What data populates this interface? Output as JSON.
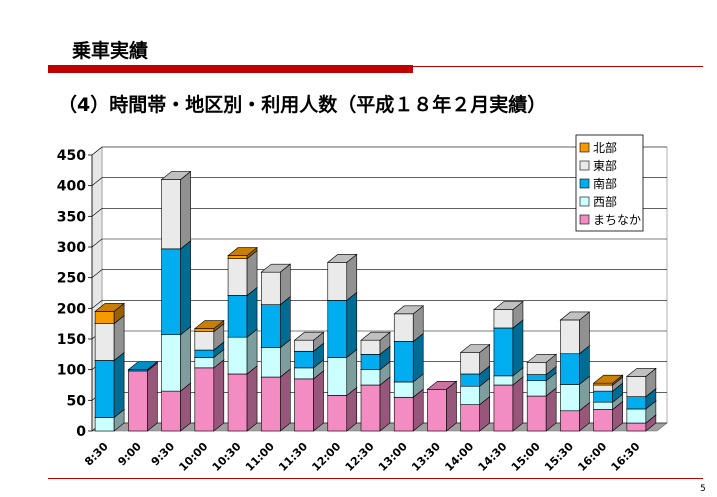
{
  "header": {
    "title": "乗車実績"
  },
  "subtitle": "（4）時間帯・地区別・利用人数（平成１８年２月実績）",
  "page_number": "5",
  "chart_data": {
    "type": "bar",
    "stacked": true,
    "three_d": true,
    "title": "（4）時間帯・地区別・利用人数（平成１８年２月実績）",
    "xlabel": "",
    "ylabel": "",
    "ylim": [
      0,
      450
    ],
    "yticks": [
      0,
      50,
      100,
      150,
      200,
      250,
      300,
      350,
      400,
      450
    ],
    "grid": true,
    "legend_position": "top-right",
    "categories": [
      "8:30",
      "9:00",
      "9:30",
      "10:00",
      "10:30",
      "11:00",
      "11:30",
      "12:00",
      "12:30",
      "13:00",
      "13:30",
      "14:00",
      "14:30",
      "15:00",
      "15:30",
      "16:00",
      "16:30"
    ],
    "series": [
      {
        "name": "まちなか",
        "color": "#f48cc4",
        "values": [
          0,
          98,
          65,
          103,
          93,
          88,
          85,
          58,
          75,
          55,
          68,
          43,
          75,
          57,
          33,
          35,
          13
        ]
      },
      {
        "name": "西部",
        "color": "#ccffff",
        "values": [
          22,
          0,
          92,
          17,
          60,
          48,
          18,
          62,
          25,
          25,
          0,
          30,
          15,
          25,
          43,
          12,
          23
        ]
      },
      {
        "name": "南部",
        "color": "#00aeef",
        "values": [
          93,
          2,
          140,
          12,
          68,
          70,
          27,
          93,
          25,
          66,
          0,
          20,
          78,
          10,
          50,
          18,
          20
        ]
      },
      {
        "name": "東部",
        "color": "#eaeaea",
        "values": [
          60,
          0,
          113,
          30,
          60,
          53,
          18,
          62,
          23,
          45,
          0,
          35,
          30,
          20,
          55,
          10,
          33
        ]
      },
      {
        "name": "北部",
        "color": "#f59b00",
        "values": [
          20,
          0,
          0,
          5,
          5,
          0,
          0,
          0,
          0,
          0,
          0,
          0,
          0,
          0,
          0,
          3,
          0
        ]
      }
    ]
  }
}
